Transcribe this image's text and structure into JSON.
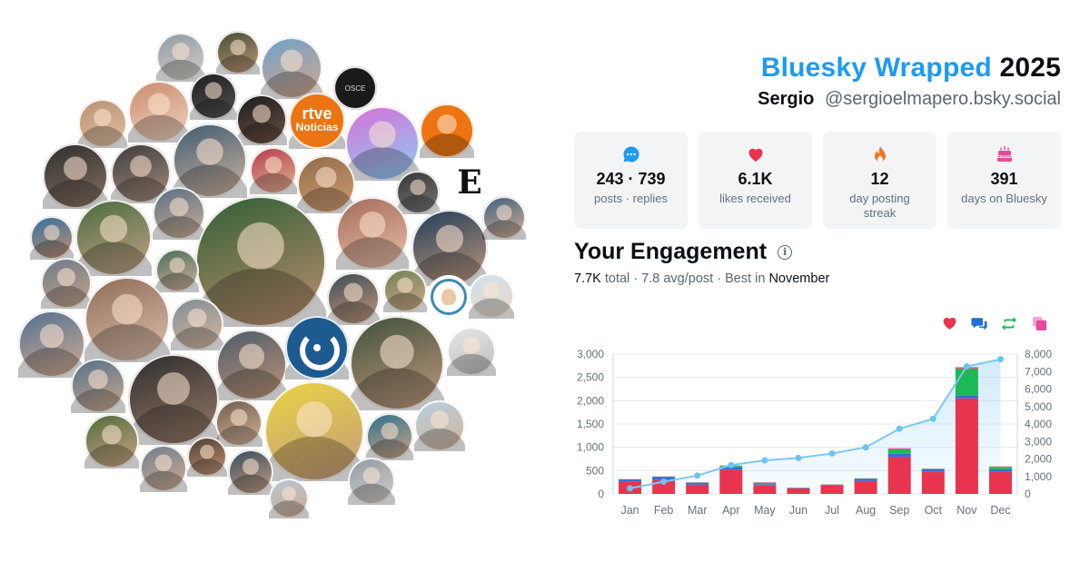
{
  "header": {
    "brand": "Bluesky Wrapped",
    "year": "2025",
    "name": "Sergio",
    "handle": "@sergioelmapero.bsky.social"
  },
  "stats": [
    {
      "icon": "chat-bubble-icon",
      "color": "#1e9bf0",
      "value": "243 · 739",
      "label": "posts · replies"
    },
    {
      "icon": "heart-icon",
      "color": "#e8344e",
      "value": "6.1K",
      "label": "likes received"
    },
    {
      "icon": "fire-icon",
      "color": "#f5731f",
      "value": "12",
      "label": "day posting streak"
    },
    {
      "icon": "cake-icon",
      "color": "#e84a9a",
      "value": "391",
      "label": "days on Bluesky"
    }
  ],
  "engagement": {
    "title": "Your Engagement",
    "total": "7.7K",
    "total_label": "total",
    "avg": "7.8 avg/post",
    "best_prefix": "Best in",
    "best_month": "November"
  },
  "legend": [
    {
      "name": "likes",
      "icon": "heart-icon",
      "color": "#e8344e"
    },
    {
      "name": "replies",
      "icon": "reply-bubble-icon",
      "color": "#1e70d8"
    },
    {
      "name": "reposts",
      "icon": "repost-icon",
      "color": "#1db954"
    },
    {
      "name": "quotes",
      "icon": "quote-icon",
      "color": "#e84a9a"
    }
  ],
  "chart_data": {
    "type": "bar",
    "categories": [
      "Jan",
      "Feb",
      "Mar",
      "Apr",
      "May",
      "Jun",
      "Jul",
      "Aug",
      "Sep",
      "Oct",
      "Nov",
      "Dec"
    ],
    "stacked": true,
    "series": [
      {
        "name": "likes",
        "color": "#e8344e",
        "values": [
          260,
          300,
          200,
          520,
          190,
          120,
          180,
          280,
          800,
          480,
          2050,
          470
        ]
      },
      {
        "name": "replies",
        "color": "#2f6fd6",
        "values": [
          50,
          60,
          40,
          60,
          20,
          10,
          15,
          40,
          60,
          50,
          60,
          60
        ]
      },
      {
        "name": "reposts",
        "color": "#1db954",
        "values": [
          5,
          10,
          5,
          20,
          30,
          3,
          5,
          10,
          100,
          10,
          580,
          50
        ]
      },
      {
        "name": "quotes",
        "color": "#e84a9a",
        "values": [
          5,
          5,
          5,
          10,
          10,
          2,
          5,
          5,
          20,
          5,
          30,
          10
        ]
      },
      {
        "name": "cumulative",
        "type": "line",
        "axis": "right",
        "color": "#7cc8f0",
        "values": [
          320,
          700,
          1050,
          1650,
          1920,
          2060,
          2310,
          2670,
          3730,
          4300,
          7300,
          7700
        ]
      }
    ],
    "ylim": [
      0,
      3000
    ],
    "y_ticks": [
      "3,000",
      "2,500",
      "2,000",
      "1,500",
      "1,000",
      "500",
      "0"
    ],
    "y2lim": [
      0,
      8000
    ],
    "y2_ticks": [
      "8,000",
      "7,000",
      "6,000",
      "5,000",
      "4,000",
      "3,000",
      "2,000",
      "1,000",
      "0"
    ],
    "grid": true
  },
  "avatars": [
    {
      "label": "avatar",
      "c1": "#8d9aa5",
      "c2": "#d8d0c8"
    },
    {
      "label": "avatar",
      "c1": "#3f4a2e",
      "c2": "#c49a7e"
    },
    {
      "label": "avatar",
      "c1": "#6ea0cc",
      "c2": "#d7a888"
    },
    {
      "label": "avatar",
      "c1": "#1c1c1c",
      "c2": "#555"
    },
    {
      "label": "avatar",
      "c1": "#b7916f",
      "c2": "#e2c2a6"
    },
    {
      "label": "avatar",
      "c1": "#c98a6b",
      "c2": "#f0d6c4"
    },
    {
      "label": "avatar",
      "c1": "#1a1a1a",
      "c2": "#6f5545"
    },
    {
      "label": "avatar",
      "c1": "#7a5a3c",
      "c2": "#d1a685"
    },
    {
      "label": "avatar",
      "c1": "#d56fd9",
      "c2": "#8ed0f0"
    },
    {
      "label": "avatar",
      "c1": "#ec7412",
      "c2": "#ec7412"
    },
    {
      "label": "avatar",
      "c1": "#2b2b2b",
      "c2": "#8a7565"
    },
    {
      "label": "avatar",
      "c1": "#3a3a3a",
      "c2": "#a88f80"
    },
    {
      "label": "avatar",
      "c1": "#3c5a6e",
      "c2": "#d2b6a2"
    },
    {
      "label": "avatar",
      "c1": "#b13b4a",
      "c2": "#e3b89a"
    },
    {
      "label": "avatar",
      "c1": "#8e6a48",
      "c2": "#d4a072"
    },
    {
      "label": "avatar",
      "c1": "#333",
      "c2": "#7a7a7a"
    },
    {
      "label": "avatar",
      "c1": "#476a3d",
      "c2": "#c7a58a"
    },
    {
      "label": "avatar",
      "c1": "#556c7f",
      "c2": "#cfb29a"
    },
    {
      "label": "avatar",
      "c1": "#2f5e35",
      "c2": "#c09070"
    },
    {
      "label": "avatar",
      "c1": "#a26a5a",
      "c2": "#e9c1a8"
    },
    {
      "label": "avatar",
      "c1": "#1f3b57",
      "c2": "#c49b80"
    },
    {
      "label": "avatar",
      "c1": "#3a5d7a",
      "c2": "#d8b49a"
    },
    {
      "label": "avatar",
      "c1": "#2f6fa0",
      "c2": "#c7916f"
    },
    {
      "label": "avatar",
      "c1": "#456a5a",
      "c2": "#d7b59e"
    },
    {
      "label": "avatar",
      "c1": "#6b7a8a",
      "c2": "#c8a48a"
    },
    {
      "label": "avatar",
      "c1": "#8c6a56",
      "c2": "#e2c4b0"
    },
    {
      "label": "avatar",
      "c1": "#7e8a94",
      "c2": "#d9bba3"
    },
    {
      "label": "avatar",
      "c1": "#3b4a59",
      "c2": "#c69a7a"
    },
    {
      "label": "avatar",
      "c1": "#6f7f53",
      "c2": "#d0ab8e"
    },
    {
      "label": "avatar",
      "c1": "#cfe3ee",
      "c2": "#e8d6c6"
    },
    {
      "label": "avatar",
      "c1": "#506d90",
      "c2": "#d5b094"
    },
    {
      "label": "avatar",
      "c1": "#4a5a6a",
      "c2": "#c19777"
    },
    {
      "label": "avatar",
      "c1": "#6a8aa0",
      "c2": "#cfa485"
    },
    {
      "label": "avatar",
      "c1": "#3d4f3a",
      "c2": "#c49c80"
    },
    {
      "label": "avatar",
      "c1": "#e8e8e8",
      "c2": "#bbb"
    },
    {
      "label": "avatar",
      "c1": "#4f6e86",
      "c2": "#d1ad92"
    },
    {
      "label": "avatar",
      "c1": "#2c2c2c",
      "c2": "#9a7d6a"
    },
    {
      "label": "avatar",
      "c1": "#6c5a4a",
      "c2": "#d8b89c"
    },
    {
      "label": "avatar",
      "c1": "#e9d544",
      "c2": "#c39a7c"
    },
    {
      "label": "avatar",
      "c1": "#2a6e8a",
      "c2": "#d6a888"
    },
    {
      "label": "avatar",
      "c1": "#b6d0df",
      "c2": "#d2b49c"
    },
    {
      "label": "avatar",
      "c1": "#4d6a3a",
      "c2": "#cfa88b"
    },
    {
      "label": "avatar",
      "c1": "#6d7c8a",
      "c2": "#d3b095"
    },
    {
      "label": "avatar",
      "c1": "#4a3a2e",
      "c2": "#c6977a"
    },
    {
      "label": "avatar",
      "c1": "#34495e",
      "c2": "#c9a184"
    },
    {
      "label": "avatar",
      "c1": "#b5c9d6",
      "c2": "#cfa98c"
    }
  ],
  "logos": {
    "dark_badge": "OSCE",
    "rtve_top": "rtve",
    "rtve_bottom": "Noticias",
    "e_logo": "E"
  }
}
